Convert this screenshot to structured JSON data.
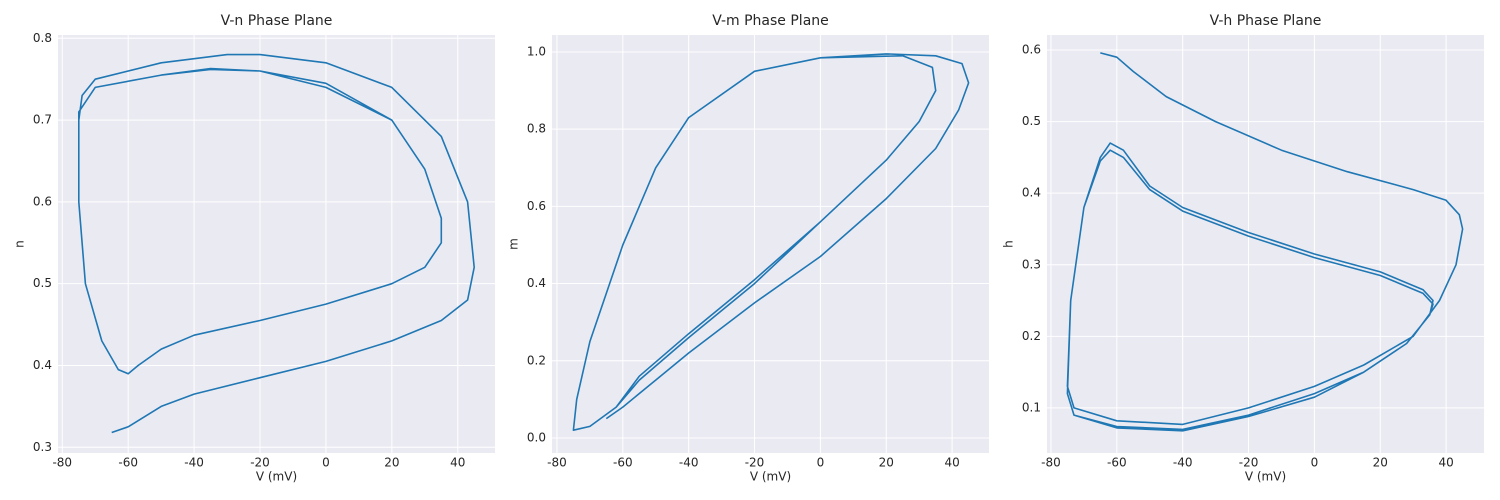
{
  "chart_data": [
    {
      "type": "line",
      "title": "V-n Phase Plane",
      "xlabel": "V (mV)",
      "ylabel": "n",
      "color": "#1f77b4",
      "grid": true,
      "xlim": [
        -81.3,
        51.3
      ],
      "ylim": [
        0.293,
        0.804
      ],
      "xticks": [
        -80,
        -60,
        -40,
        -20,
        0,
        20,
        40
      ],
      "yticks": [
        0.3,
        0.4,
        0.5,
        0.6,
        0.7,
        0.8
      ],
      "x": [
        -65,
        -60,
        -50,
        -40,
        -20,
        0,
        20,
        35,
        43,
        45,
        43,
        35,
        20,
        0,
        -20,
        -30,
        -50,
        -70,
        -74,
        -75,
        -75,
        -73,
        -68,
        -63,
        -60,
        -57,
        -50,
        -40,
        -20,
        0,
        20,
        30,
        35,
        35,
        30,
        20,
        0,
        -20,
        -35,
        -50,
        -70,
        -75,
        -75,
        -73,
        -68,
        -63,
        -60,
        -57,
        -50,
        -40,
        -20,
        0,
        20,
        30,
        35,
        35,
        30,
        20,
        0,
        -20,
        -35,
        -50,
        -70,
        -75
      ],
      "values": [
        0.318,
        0.325,
        0.35,
        0.365,
        0.385,
        0.405,
        0.43,
        0.455,
        0.48,
        0.52,
        0.6,
        0.68,
        0.74,
        0.77,
        0.78,
        0.78,
        0.77,
        0.75,
        0.73,
        0.7,
        0.6,
        0.5,
        0.43,
        0.395,
        0.39,
        0.4,
        0.42,
        0.437,
        0.455,
        0.475,
        0.5,
        0.52,
        0.55,
        0.58,
        0.64,
        0.7,
        0.74,
        0.76,
        0.763,
        0.755,
        0.74,
        0.71,
        0.6,
        0.5,
        0.43,
        0.395,
        0.39,
        0.4,
        0.42,
        0.437,
        0.455,
        0.475,
        0.5,
        0.52,
        0.55,
        0.58,
        0.64,
        0.7,
        0.745,
        0.76,
        0.762,
        0.755,
        0.74,
        0.71
      ]
    },
    {
      "type": "line",
      "title": "V-m Phase Plane",
      "xlabel": "V (mV)",
      "ylabel": "m",
      "color": "#1f77b4",
      "grid": true,
      "xlim": [
        -81.5,
        51.2
      ],
      "ylim": [
        -0.039,
        1.044
      ],
      "xticks": [
        -80,
        -60,
        -40,
        -20,
        0,
        20,
        40
      ],
      "yticks": [
        {
          "value": 0,
          "label": "0.0"
        },
        0.2,
        0.4,
        0.6,
        0.8,
        {
          "value": 1,
          "label": "1.0"
        }
      ],
      "x": [
        -65,
        -60,
        -50,
        -40,
        -20,
        0,
        20,
        35,
        42,
        45,
        43,
        35,
        20,
        0,
        -20,
        -40,
        -50,
        -60,
        -70,
        -74,
        -75,
        -70,
        -62,
        -55,
        -40,
        -20,
        0,
        20,
        30,
        35,
        34,
        25,
        0,
        -20,
        -40,
        -50,
        -60,
        -70,
        -74,
        -75,
        -70,
        -62,
        -55,
        -40,
        -20,
        0,
        20,
        30,
        35,
        34,
        25
      ],
      "values": [
        0.05,
        0.08,
        0.15,
        0.22,
        0.35,
        0.47,
        0.62,
        0.75,
        0.85,
        0.92,
        0.97,
        0.99,
        0.995,
        0.985,
        0.95,
        0.83,
        0.7,
        0.5,
        0.25,
        0.1,
        0.02,
        0.03,
        0.08,
        0.15,
        0.26,
        0.4,
        0.56,
        0.72,
        0.82,
        0.9,
        0.96,
        0.99,
        0.985,
        0.95,
        0.83,
        0.7,
        0.5,
        0.25,
        0.1,
        0.02,
        0.03,
        0.08,
        0.16,
        0.27,
        0.41,
        0.56,
        0.72,
        0.82,
        0.9,
        0.96,
        0.99
      ]
    },
    {
      "type": "line",
      "title": "V-h Phase Plane",
      "xlabel": "V (mV)",
      "ylabel": "h",
      "color": "#1f77b4",
      "grid": true,
      "xlim": [
        -81.2,
        51.5
      ],
      "ylim": [
        0.037,
        0.621
      ],
      "xticks": [
        -80,
        -60,
        -40,
        -20,
        0,
        20,
        40
      ],
      "yticks": [
        0.1,
        0.2,
        0.3,
        0.4,
        0.5,
        0.6
      ],
      "x": [
        -65,
        -60,
        -55,
        -45,
        -30,
        -10,
        10,
        30,
        40,
        44,
        45,
        43,
        38,
        30,
        15,
        0,
        -20,
        -40,
        -60,
        -73,
        -75,
        -74,
        -70,
        -65,
        -62,
        -58,
        -50,
        -40,
        -20,
        0,
        20,
        33,
        36,
        35,
        28,
        15,
        0,
        -20,
        -40,
        -60,
        -73,
        -75,
        -74,
        -70,
        -65,
        -62,
        -58,
        -50,
        -40,
        -20,
        0,
        20,
        33,
        36,
        35,
        28,
        15,
        0,
        -20,
        -40,
        -60,
        -73,
        -75
      ],
      "values": [
        0.596,
        0.59,
        0.57,
        0.535,
        0.5,
        0.46,
        0.43,
        0.405,
        0.39,
        0.37,
        0.35,
        0.3,
        0.25,
        0.2,
        0.16,
        0.13,
        0.1,
        0.077,
        0.082,
        0.1,
        0.13,
        0.25,
        0.38,
        0.45,
        0.47,
        0.46,
        0.41,
        0.38,
        0.345,
        0.315,
        0.29,
        0.265,
        0.25,
        0.23,
        0.19,
        0.15,
        0.12,
        0.09,
        0.07,
        0.074,
        0.09,
        0.12,
        0.25,
        0.38,
        0.445,
        0.46,
        0.45,
        0.405,
        0.375,
        0.34,
        0.31,
        0.285,
        0.26,
        0.245,
        0.23,
        0.19,
        0.15,
        0.115,
        0.088,
        0.068,
        0.072,
        0.09,
        0.12
      ]
    }
  ]
}
